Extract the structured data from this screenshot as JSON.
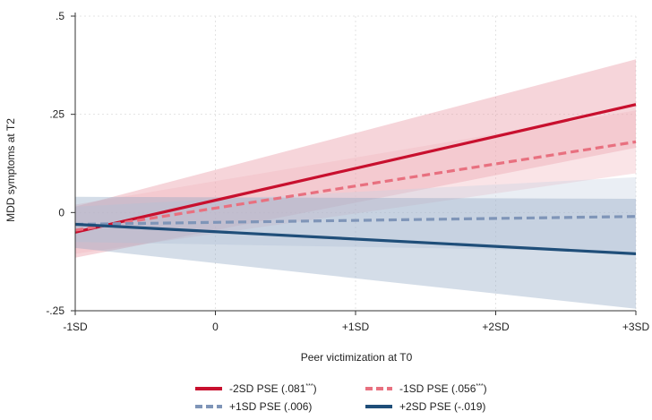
{
  "chart_data": {
    "type": "line",
    "xlabel": "Peer victimization at T0",
    "ylabel": "MDD symptoms at T2",
    "x_ticks": [
      "-1SD",
      "0",
      "+1SD",
      "+2SD",
      "+3SD"
    ],
    "x_tick_values": [
      -1,
      0,
      1,
      2,
      3
    ],
    "y_ticks": [
      ".5",
      ".25",
      "0",
      "-.25"
    ],
    "y_tick_values": [
      0.5,
      0.25,
      0,
      -0.25
    ],
    "xlim": [
      -1,
      3
    ],
    "ylim": [
      -0.25,
      0.5
    ],
    "grid": true,
    "legend_position": "bottom",
    "series": [
      {
        "name": "-2SD PSE (.081***)",
        "label_main": "-2SD PSE (.081",
        "label_sup": "***",
        "label_end": ")",
        "color": "#c8102e",
        "band_color": "#e8909e",
        "dashed": false,
        "x": [
          -1,
          3
        ],
        "y": [
          -0.05,
          0.275
        ],
        "ci_lower": [
          -0.115,
          0.165
        ],
        "ci_upper": [
          0.015,
          0.39
        ]
      },
      {
        "name": "-1SD PSE (.056***)",
        "label_main": "-1SD PSE (.056",
        "label_sup": "***",
        "label_end": ")",
        "color": "#e8707f",
        "band_color": "#f2b8c0",
        "dashed": true,
        "x": [
          -1,
          3
        ],
        "y": [
          -0.045,
          0.18
        ],
        "ci_lower": [
          -0.105,
          0.1
        ],
        "ci_upper": [
          0.02,
          0.26
        ]
      },
      {
        "name": "+1SD PSE (.006)",
        "label_main": "+1SD PSE (.006)",
        "label_sup": "",
        "label_end": "",
        "color": "#7f95b8",
        "band_color": "#c9d3e2",
        "dashed": true,
        "x": [
          -1,
          3
        ],
        "y": [
          -0.03,
          -0.01
        ],
        "ci_lower": [
          -0.075,
          -0.1
        ],
        "ci_upper": [
          0.015,
          0.09
        ]
      },
      {
        "name": "+2SD PSE (-.019)",
        "label_main": "+2SD PSE (-.019)",
        "label_sup": "",
        "label_end": "",
        "color": "#1f4e79",
        "band_color": "#8fa6c2",
        "dashed": false,
        "x": [
          -1,
          3
        ],
        "y": [
          -0.03,
          -0.105
        ],
        "ci_lower": [
          -0.09,
          -0.245
        ],
        "ci_upper": [
          0.04,
          0.035
        ]
      }
    ]
  }
}
